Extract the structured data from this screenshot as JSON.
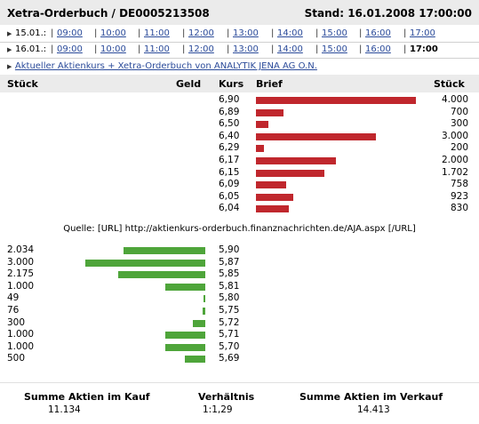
{
  "header": {
    "title": "Xetra-Orderbuch / DE0005213508",
    "stand": "Stand: 16.01.2008 17:00:00"
  },
  "time_rows": [
    {
      "date": "15.01.:",
      "times": [
        "09:00",
        "10:00",
        "11:00",
        "12:00",
        "13:00",
        "14:00",
        "15:00",
        "16:00",
        "17:00"
      ],
      "current": ""
    },
    {
      "date": "16.01.:",
      "times": [
        "09:00",
        "10:00",
        "11:00",
        "12:00",
        "13:00",
        "14:00",
        "15:00",
        "16:00"
      ],
      "current": "17:00"
    }
  ],
  "aktuell_link": "Aktueller Aktienkurs + Xetra-Orderbuch von ANALYTIK JENA AG O.N.",
  "columns": {
    "stueck_left": "Stück",
    "geld": "Geld",
    "kurs": "Kurs",
    "brief": "Brief",
    "stueck_right": "Stück"
  },
  "brief_orders": [
    {
      "kurs": "6,90",
      "stueck": "4.000",
      "qty": 4000
    },
    {
      "kurs": "6,89",
      "stueck": "700",
      "qty": 700
    },
    {
      "kurs": "6,50",
      "stueck": "300",
      "qty": 300
    },
    {
      "kurs": "6,40",
      "stueck": "3.000",
      "qty": 3000
    },
    {
      "kurs": "6,29",
      "stueck": "200",
      "qty": 200
    },
    {
      "kurs": "6,17",
      "stueck": "2.000",
      "qty": 2000
    },
    {
      "kurs": "6,15",
      "stueck": "1.702",
      "qty": 1702
    },
    {
      "kurs": "6,09",
      "stueck": "758",
      "qty": 758
    },
    {
      "kurs": "6,05",
      "stueck": "923",
      "qty": 923
    },
    {
      "kurs": "6,04",
      "stueck": "830",
      "qty": 830
    }
  ],
  "quelle": "Quelle: [URL] http://aktienkurs-orderbuch.finanznachrichten.de/AJA.aspx [/URL]",
  "geld_orders": [
    {
      "stueck": "2.034",
      "kurs": "5,90",
      "qty": 2034
    },
    {
      "stueck": "3.000",
      "kurs": "5,87",
      "qty": 3000
    },
    {
      "stueck": "2.175",
      "kurs": "5,85",
      "qty": 2175
    },
    {
      "stueck": "1.000",
      "kurs": "5,81",
      "qty": 1000
    },
    {
      "stueck": "49",
      "kurs": "5,80",
      "qty": 49
    },
    {
      "stueck": "76",
      "kurs": "5,75",
      "qty": 76
    },
    {
      "stueck": "300",
      "kurs": "5,72",
      "qty": 300
    },
    {
      "stueck": "1.000",
      "kurs": "5,71",
      "qty": 1000
    },
    {
      "stueck": "1.000",
      "kurs": "5,70",
      "qty": 1000
    },
    {
      "stueck": "500",
      "kurs": "5,69",
      "qty": 500
    }
  ],
  "summary": {
    "kauf_label": "Summe Aktien im Kauf",
    "kauf_value": "11.134",
    "verhaeltnis_label": "Verhältnis",
    "verhaeltnis_value": "1:1,29",
    "verkauf_label": "Summe Aktien im Verkauf",
    "verkauf_value": "14.413"
  },
  "colors": {
    "brief_bar": "#c0272d",
    "geld_bar": "#4ea53a",
    "link": "#2b4b9a",
    "header_bg": "#ebebeb"
  }
}
